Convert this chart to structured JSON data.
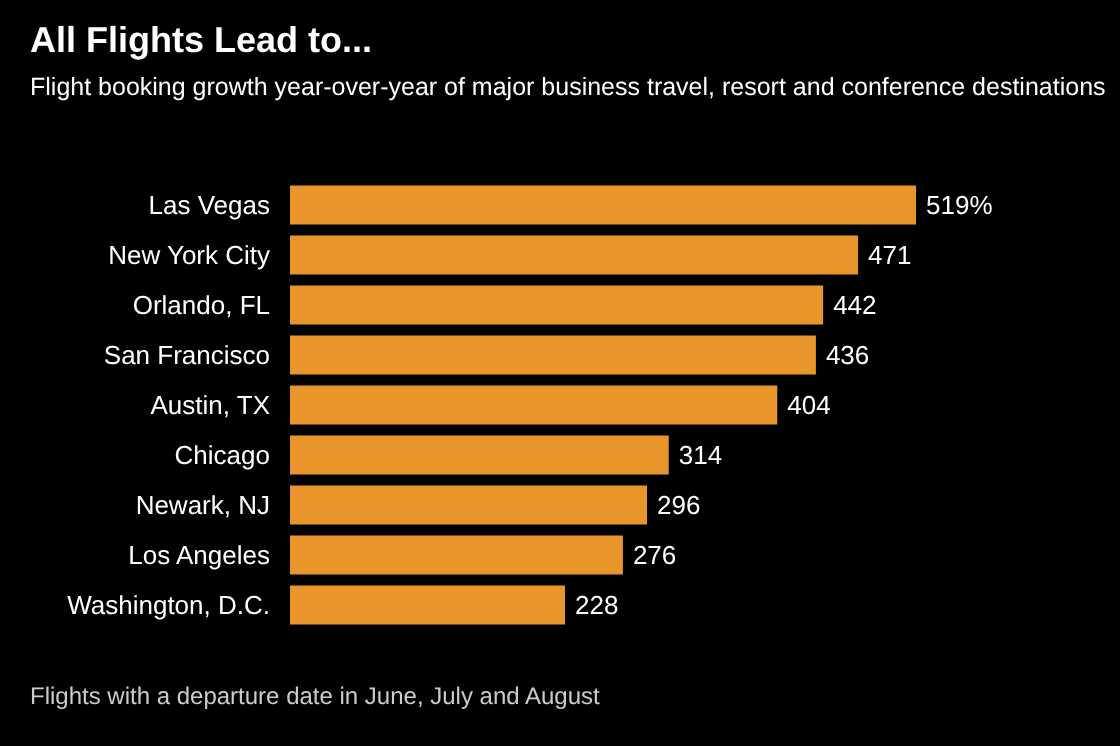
{
  "chart_data": {
    "type": "bar",
    "orientation": "horizontal",
    "title": "All Flights Lead to...",
    "subtitle": "Flight booking growth year-over-year of major business travel, resort and conference destinations",
    "categories": [
      "Las Vegas",
      "New York City",
      "Orlando, FL",
      "San Francisco",
      "Austin, TX",
      "Chicago",
      "Newark, NJ",
      "Los Angeles",
      "Washington, D.C."
    ],
    "values": [
      519,
      471,
      442,
      436,
      404,
      314,
      296,
      276,
      228
    ],
    "value_labels": [
      "519%",
      "471",
      "442",
      "436",
      "404",
      "314",
      "296",
      "276",
      "228"
    ],
    "color": "#e8952b",
    "annotations": [
      "Flights with a departure date in June, July and August"
    ]
  }
}
